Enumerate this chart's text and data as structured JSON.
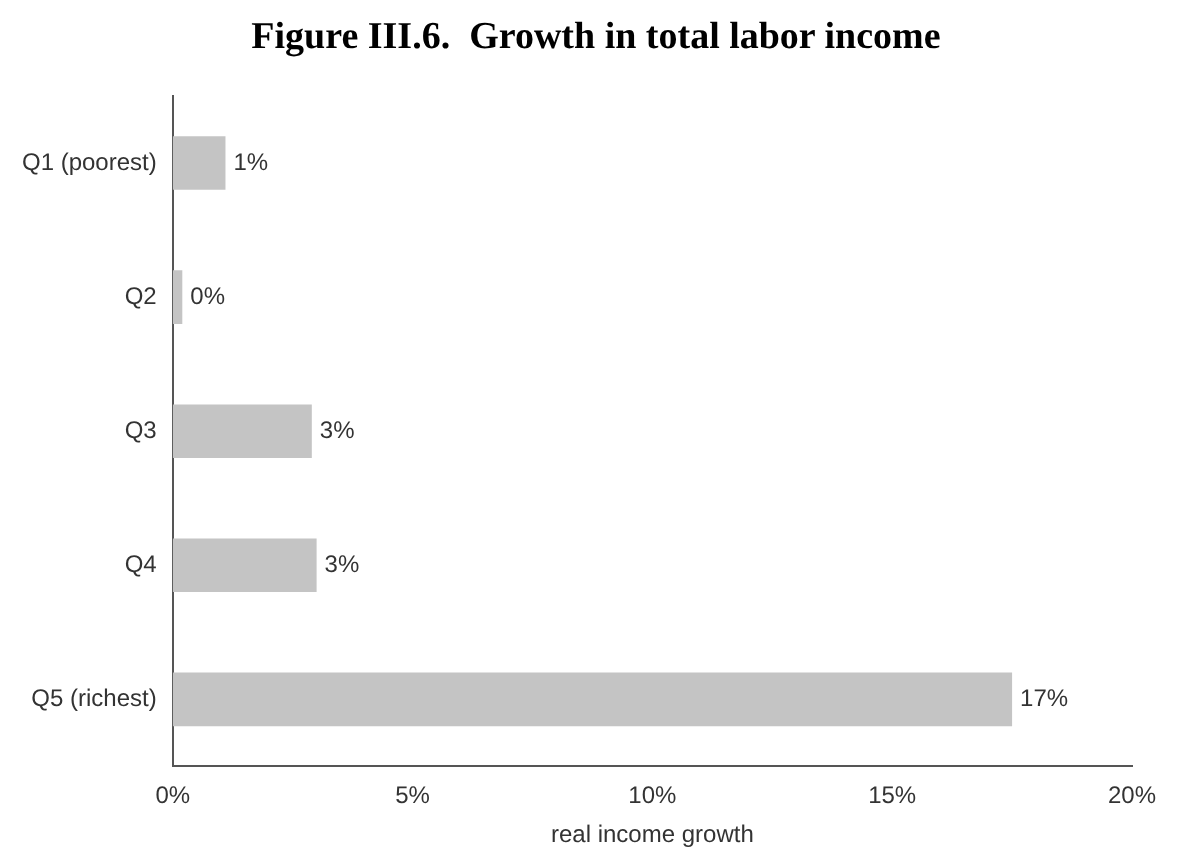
{
  "chart_data": {
    "type": "bar",
    "orientation": "horizontal",
    "title": "Figure III.6.  Growth in total labor income",
    "xlabel": "real income growth",
    "categories": [
      "Q1 (poorest)",
      "Q2",
      "Q3",
      "Q4",
      "Q5 (richest)"
    ],
    "values": [
      1.1,
      0.2,
      2.9,
      3.0,
      17.5
    ],
    "value_labels": [
      "1%",
      "0%",
      "3%",
      "3%",
      "17%"
    ],
    "color": "#c4c4c4",
    "xlim": [
      0,
      20
    ],
    "xticks": [
      {
        "value": 0,
        "label": "0%"
      },
      {
        "value": 5,
        "label": "5%"
      },
      {
        "value": 10,
        "label": "10%"
      },
      {
        "value": 15,
        "label": "15%"
      },
      {
        "value": 20,
        "label": "20%"
      }
    ],
    "grid": false,
    "legend": false
  }
}
